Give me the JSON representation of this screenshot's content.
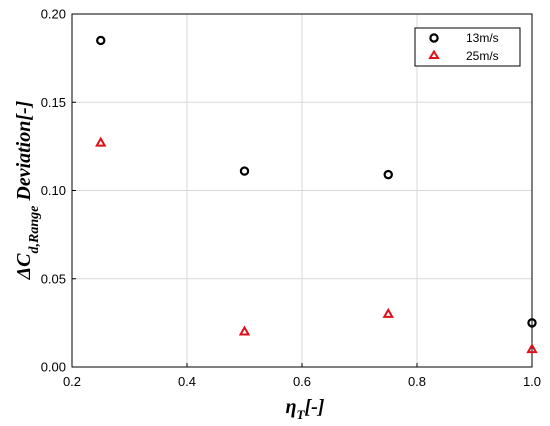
{
  "chart_data": {
    "type": "scatter",
    "x_label": {
      "main": "η",
      "sub": "T",
      "suffix": "[-]"
    },
    "y_label": {
      "main": "ΔC",
      "sub": "d,Range",
      "suffix": " Deviation[-]"
    },
    "xlim": [
      0.2,
      1.0
    ],
    "ylim": [
      0.0,
      0.2
    ],
    "x_ticks": [
      0.2,
      0.4,
      0.6,
      0.8,
      1.0
    ],
    "x_tick_labels": [
      "0.2",
      "0.4",
      "0.6",
      "0.8",
      "1.0"
    ],
    "y_ticks": [
      0.0,
      0.05,
      0.1,
      0.15,
      0.2
    ],
    "y_tick_labels": [
      "0.00",
      "0.05",
      "0.10",
      "0.15",
      "0.20"
    ],
    "grid": true,
    "legend_position": "top-right",
    "series": [
      {
        "name": "13m/s",
        "marker": "circle",
        "color": "#000000",
        "x": [
          0.25,
          0.5,
          0.75,
          1.0
        ],
        "y": [
          0.185,
          0.111,
          0.109,
          0.025
        ]
      },
      {
        "name": "25m/s",
        "marker": "triangle",
        "color": "#e0101a",
        "x": [
          0.25,
          0.5,
          0.75,
          1.0
        ],
        "y": [
          0.127,
          0.02,
          0.03,
          0.01
        ]
      }
    ]
  }
}
